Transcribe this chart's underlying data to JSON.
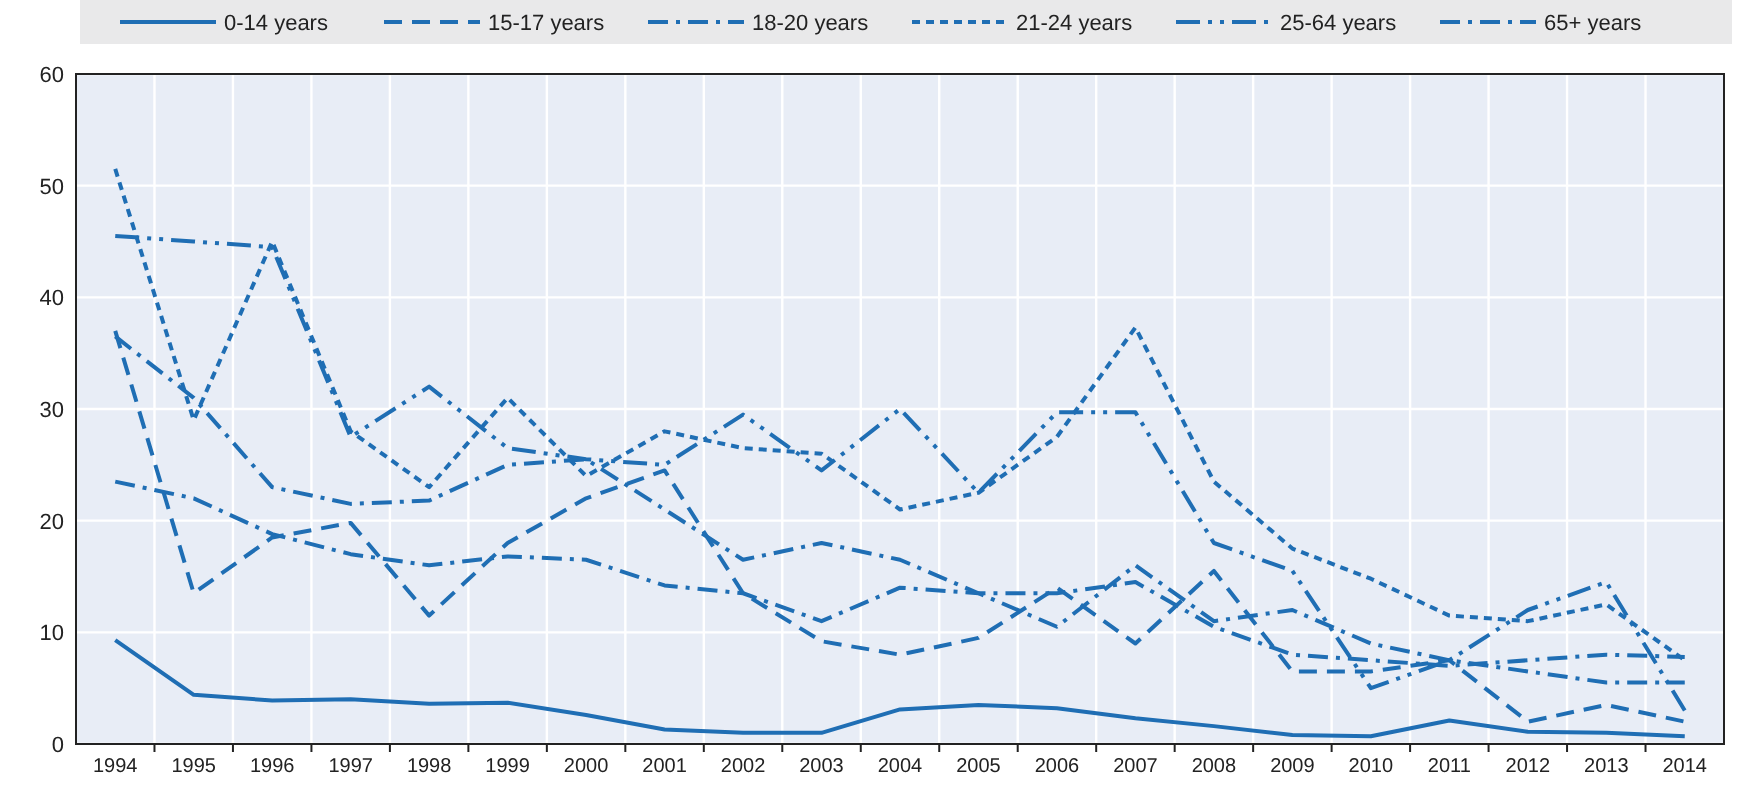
{
  "chart_data": {
    "type": "line",
    "categories": [
      "1994",
      "1995",
      "1996",
      "1997",
      "1998",
      "1999",
      "2000",
      "2001",
      "2002",
      "2003",
      "2004",
      "2005",
      "2006",
      "2007",
      "2008",
      "2009",
      "2010",
      "2011",
      "2012",
      "2013",
      "2014"
    ],
    "series": [
      {
        "name": "0-14 years",
        "color": "#1f6eb4",
        "line_style": "solid",
        "values": [
          9.3,
          4.4,
          3.9,
          4.0,
          3.6,
          3.7,
          2.6,
          1.3,
          1.0,
          1.0,
          3.1,
          3.5,
          3.2,
          2.3,
          1.6,
          0.8,
          0.7,
          2.1,
          1.1,
          1.0,
          0.7
        ]
      },
      {
        "name": "15-17 years",
        "color": "#1f6eb4",
        "line_style": "dashed",
        "values": [
          37,
          13.5,
          18.5,
          19.8,
          11.5,
          18,
          22,
          24.5,
          13.5,
          9.2,
          8,
          9.5,
          14,
          9,
          15.5,
          6.5,
          6.5,
          7.5,
          2,
          3.5,
          2
        ]
      },
      {
        "name": "18-20 years",
        "color": "#1f6eb4",
        "line_style": "dashdot",
        "values": [
          23.5,
          22,
          18.8,
          17,
          16,
          16.8,
          16.5,
          14.2,
          13.5,
          11,
          14,
          13.5,
          13.5,
          14.5,
          10.5,
          8,
          7.5,
          7,
          7.5,
          8,
          7.8
        ]
      },
      {
        "name": "21-24 years",
        "color": "#1f6eb4",
        "line_style": "dotted",
        "values": [
          51.5,
          29,
          45,
          28,
          23,
          31,
          24,
          28,
          26.5,
          26,
          21,
          22.5,
          27.5,
          37.3,
          23.5,
          17.5,
          14.8,
          11.5,
          11,
          12.5,
          7.5
        ]
      },
      {
        "name": "25-64 years",
        "color": "#1f6eb4",
        "line_style": "dashdotdot",
        "values": [
          45.5,
          45,
          44.5,
          27.5,
          32,
          26.5,
          25.5,
          25,
          29.5,
          24.5,
          30,
          22.5,
          29.7,
          29.7,
          18,
          15.5,
          5,
          7.5,
          12,
          14.5,
          3
        ]
      },
      {
        "name": "65+ years",
        "color": "#1f6eb4",
        "line_style": "dashdot",
        "values": [
          36.5,
          31,
          23,
          21.5,
          21.8,
          25,
          25.5,
          21,
          16.5,
          18,
          16.5,
          13.5,
          10.5,
          16,
          11,
          12,
          9,
          7.5,
          6.5,
          5.5,
          5.5
        ]
      }
    ],
    "ylim": [
      0,
      60
    ],
    "yticks": [
      0,
      10,
      20,
      30,
      40,
      50,
      60
    ],
    "grid": true,
    "legend": "top"
  }
}
